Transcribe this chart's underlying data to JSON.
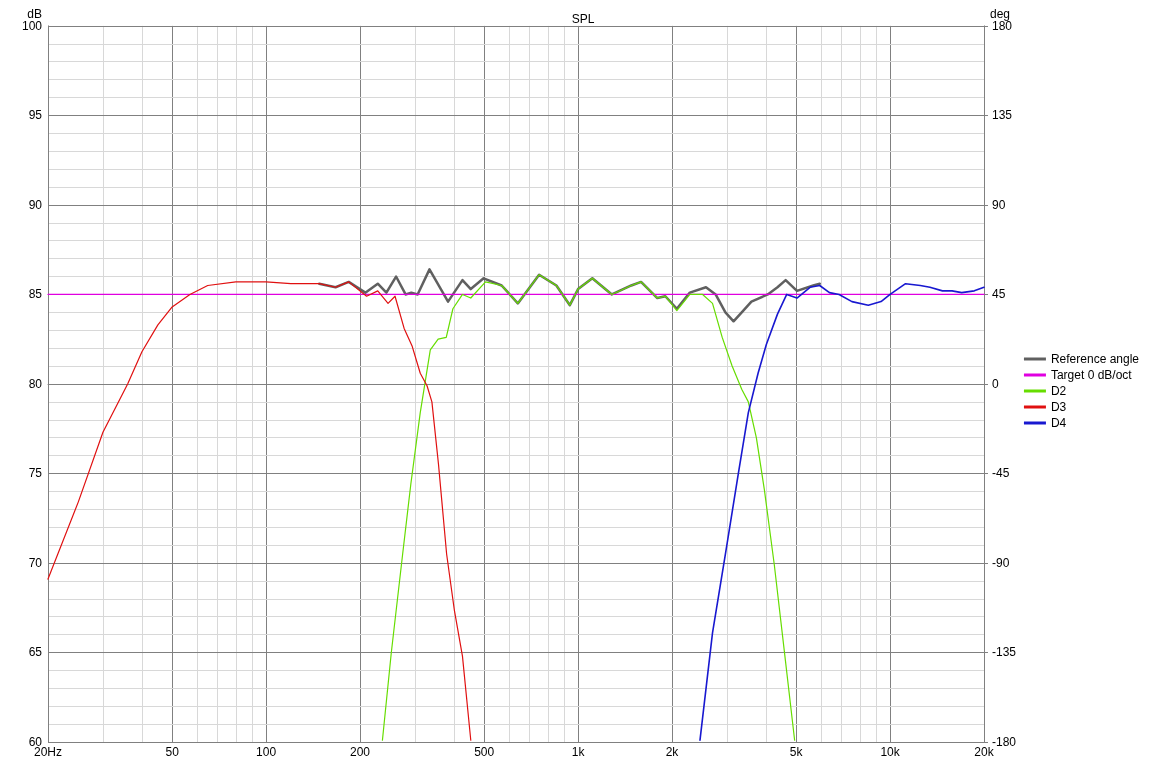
{
  "chart_data": {
    "type": "line",
    "title": "SPL",
    "ylabel": "dB",
    "y2label": "deg",
    "xlim": [
      20,
      20000
    ],
    "ylim": [
      60,
      100
    ],
    "y2lim": [
      -180,
      180
    ],
    "log": "x",
    "grid": true,
    "legend": "right",
    "marker": "none",
    "line_style": "solid",
    "xticks": [
      {
        "value": 20,
        "label": "20Hz"
      },
      {
        "value": 30,
        "label": null
      },
      {
        "value": 40,
        "label": null
      },
      50,
      {
        "value": 60,
        "label": null
      },
      {
        "value": 70,
        "label": null
      },
      {
        "value": 80,
        "label": null
      },
      {
        "value": 90,
        "label": null
      },
      100,
      200,
      {
        "value": 300,
        "label": null
      },
      {
        "value": 400,
        "label": null
      },
      500,
      {
        "value": 600,
        "label": null
      },
      {
        "value": 700,
        "label": null
      },
      {
        "value": 800,
        "label": null
      },
      {
        "value": 900,
        "label": null
      },
      {
        "value": 1000,
        "label": "1k"
      },
      {
        "value": 2000,
        "label": "2k"
      },
      {
        "value": 3000,
        "label": null
      },
      {
        "value": 4000,
        "label": null
      },
      {
        "value": 5000,
        "label": "5k"
      },
      {
        "value": 6000,
        "label": null
      },
      {
        "value": 7000,
        "label": null
      },
      {
        "value": 8000,
        "label": null
      },
      {
        "value": 9000,
        "label": null
      },
      {
        "value": 10000,
        "label": "10k"
      },
      {
        "value": 20000,
        "label": "20k"
      }
    ],
    "yticks": [
      60,
      {
        "value": 61,
        "label": null
      },
      {
        "value": 62,
        "label": null
      },
      {
        "value": 63,
        "label": null
      },
      {
        "value": 64,
        "label": null
      },
      65,
      {
        "value": 66,
        "label": null
      },
      {
        "value": 67,
        "label": null
      },
      {
        "value": 68,
        "label": null
      },
      {
        "value": 69,
        "label": null
      },
      70,
      {
        "value": 71,
        "label": null
      },
      {
        "value": 72,
        "label": null
      },
      {
        "value": 73,
        "label": null
      },
      {
        "value": 74,
        "label": null
      },
      75,
      {
        "value": 76,
        "label": null
      },
      {
        "value": 77,
        "label": null
      },
      {
        "value": 78,
        "label": null
      },
      {
        "value": 79,
        "label": null
      },
      80,
      {
        "value": 81,
        "label": null
      },
      {
        "value": 82,
        "label": null
      },
      {
        "value": 83,
        "label": null
      },
      {
        "value": 84,
        "label": null
      },
      85,
      {
        "value": 86,
        "label": null
      },
      {
        "value": 87,
        "label": null
      },
      {
        "value": 88,
        "label": null
      },
      {
        "value": 89,
        "label": null
      },
      90,
      {
        "value": 91,
        "label": null
      },
      {
        "value": 92,
        "label": null
      },
      {
        "value": 93,
        "label": null
      },
      {
        "value": 94,
        "label": null
      },
      95,
      {
        "value": 96,
        "label": null
      },
      {
        "value": 97,
        "label": null
      },
      {
        "value": 98,
        "label": null
      },
      {
        "value": 99,
        "label": null
      },
      100
    ],
    "y2ticks": [
      -180,
      -135,
      -90,
      -45,
      0,
      45,
      90,
      135,
      180
    ],
    "series": [
      {
        "name": "Reference angle",
        "color": "#606060",
        "x": [
          148,
          167,
          184,
          208,
          228,
          243,
          261,
          280,
          292,
          306,
          334,
          383,
          426,
          453,
          498,
          569,
          641,
          750,
          852,
          941,
          1000,
          1111,
          1283,
          1481,
          1592,
          1795,
          1904,
          2073,
          2281,
          2570,
          2760,
          2966,
          3150,
          3346,
          3594,
          4054,
          4356,
          4627,
          5030,
          5674,
          5950
        ],
        "values": [
          85.6,
          85.4,
          85.7,
          85.1,
          85.6,
          85.1,
          86.0,
          85.0,
          85.1,
          85.0,
          86.4,
          84.6,
          85.8,
          85.3,
          85.9,
          85.5,
          84.5,
          86.1,
          85.5,
          84.4,
          85.3,
          85.9,
          85.0,
          85.5,
          85.7,
          84.8,
          84.9,
          84.2,
          85.1,
          85.4,
          85.0,
          84.0,
          83.5,
          84.0,
          84.6,
          85.0,
          85.4,
          85.8,
          85.2,
          85.5,
          85.6
        ]
      },
      {
        "name": "Target 0 dB/oct",
        "color": "#e000e0",
        "x": [
          20,
          20000
        ],
        "values": [
          85,
          85
        ]
      },
      {
        "name": "D2",
        "color": "#66dd00",
        "x": [
          236,
          252,
          274,
          291,
          312,
          336,
          356,
          378,
          397,
          426,
          453,
          505,
          569,
          641,
          750,
          852,
          941,
          1000,
          1111,
          1283,
          1481,
          1592,
          1795,
          1904,
          2073,
          2281,
          2507,
          2697,
          2897,
          3117,
          3346,
          3513,
          3727,
          3954,
          4255,
          4573,
          4944
        ],
        "values": [
          60.1,
          65.0,
          70.5,
          74.4,
          78.4,
          81.9,
          82.5,
          82.6,
          84.2,
          85.0,
          84.8,
          85.7,
          85.5,
          84.5,
          86.1,
          85.5,
          84.4,
          85.3,
          85.9,
          85.0,
          85.5,
          85.7,
          84.8,
          84.9,
          84.1,
          85.0,
          85.0,
          84.5,
          82.6,
          81.0,
          79.7,
          79.0,
          77.0,
          74.1,
          69.9,
          65.2,
          60.1
        ]
      },
      {
        "name": "D3",
        "color": "#e01010",
        "x": [
          20,
          25,
          30,
          36,
          40,
          45,
          50,
          57,
          65,
          80,
          100,
          120,
          148,
          167,
          184,
          210,
          228,
          246,
          259,
          277,
          294,
          312,
          328,
          340,
          357,
          379,
          401,
          426,
          453
        ],
        "values": [
          69.1,
          73.4,
          77.3,
          80.0,
          81.8,
          83.3,
          84.3,
          85.0,
          85.5,
          85.7,
          85.7,
          85.6,
          85.6,
          85.4,
          85.7,
          84.9,
          85.2,
          84.5,
          84.9,
          83.1,
          82.1,
          80.6,
          79.9,
          79.0,
          75.5,
          70.5,
          67.4,
          64.8,
          60.1
        ]
      },
      {
        "name": "D4",
        "color": "#1818d0",
        "x": [
          2459,
          2697,
          2966,
          3264,
          3513,
          3775,
          4012,
          4356,
          4663,
          5030,
          5539,
          5950,
          6392,
          6866,
          7546,
          8515,
          9357,
          10000,
          11210,
          12500,
          13420,
          14720,
          15800,
          16960,
          18620,
          20000
        ],
        "values": [
          60.1,
          66.1,
          70.5,
          75.0,
          78.4,
          80.6,
          82.2,
          83.9,
          85.0,
          84.8,
          85.4,
          85.5,
          85.1,
          85.0,
          84.6,
          84.4,
          84.6,
          85.0,
          85.6,
          85.5,
          85.4,
          85.2,
          85.2,
          85.1,
          85.2,
          85.4
        ]
      }
    ]
  }
}
